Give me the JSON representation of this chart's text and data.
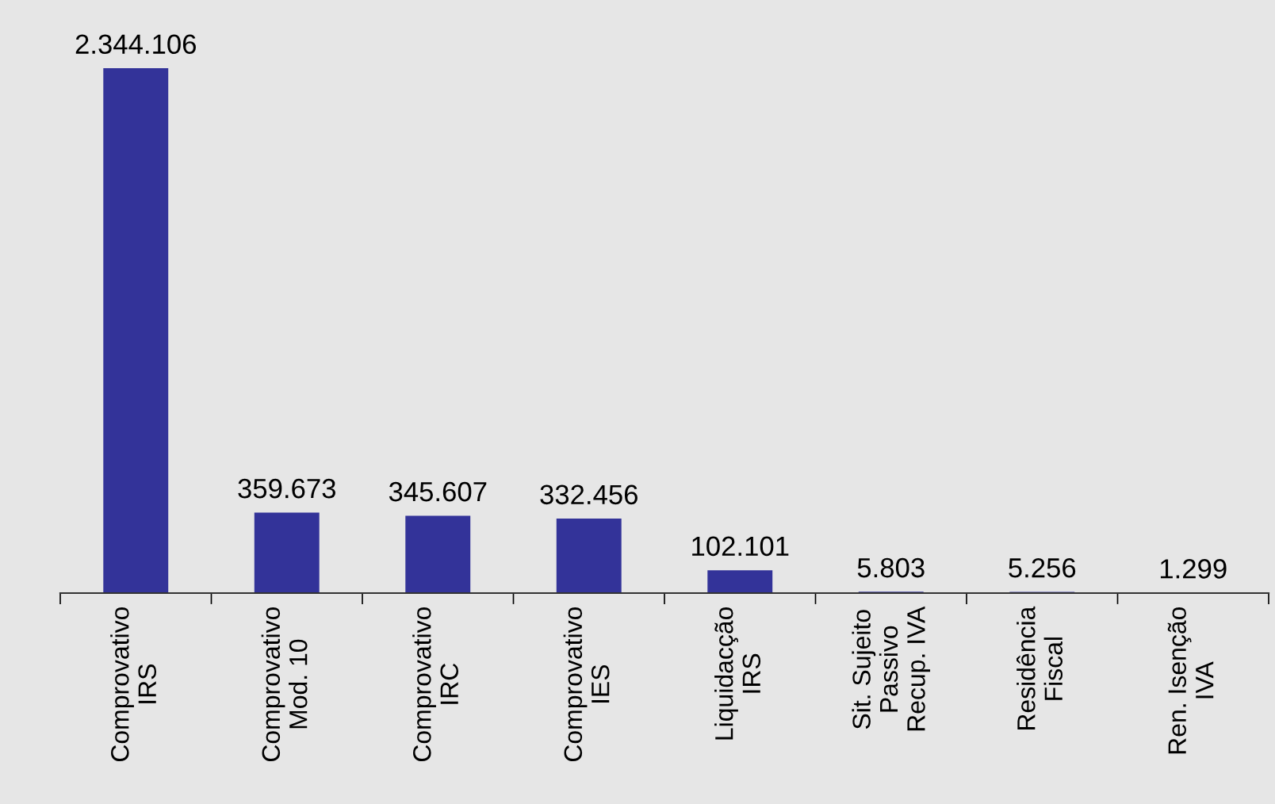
{
  "chart_data": {
    "type": "bar",
    "categories": [
      "Comprovativo\nIRS",
      "Comprovativo\nMod. 10",
      "Comprovativo\nIRC",
      "Comprovativo\nIES",
      "Liquidacção\nIRS",
      "Sit. Sujeito\nPassivo\nRecup. IVA",
      "Residência\nFiscal",
      "Ren. Isenção\nIVA"
    ],
    "values": [
      2344106,
      359673,
      345607,
      332456,
      102101,
      5803,
      5256,
      1299
    ],
    "value_labels": [
      "2.344.106",
      "359.673",
      "345.607",
      "332.456",
      "102.101",
      "5.803",
      "5.256",
      "1.299"
    ],
    "color": "#333399",
    "grid": false,
    "tick_labels": "x"
  }
}
